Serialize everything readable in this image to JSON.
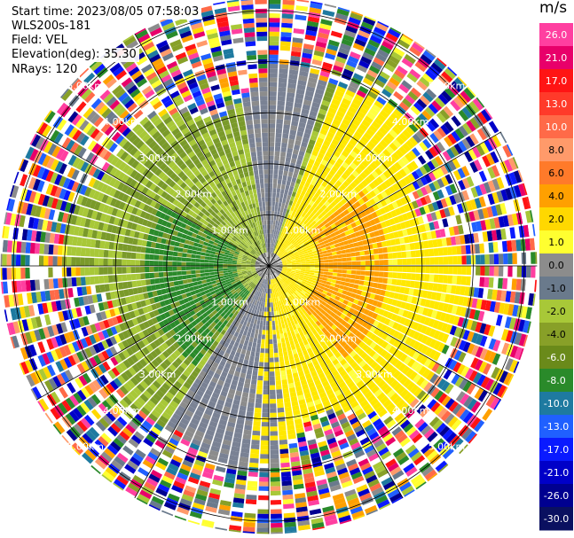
{
  "header": {
    "start_time": "Start time: 2023/08/05 07:58:03",
    "station": "WLS200s-181",
    "field": "Field: VEL",
    "elevation": "Elevation(deg): 35.30",
    "nrays": "NRays: 120"
  },
  "colorbar": {
    "unit": "m/s",
    "ticks": [
      "26.0",
      "21.0",
      "17.0",
      "13.0",
      "10.0",
      "8.0",
      "6.0",
      "4.0",
      "2.0",
      "1.0",
      "0.0",
      "-1.0",
      "-2.0",
      "-4.0",
      "-6.0",
      "-8.0",
      "-10.0",
      "-13.0",
      "-17.0",
      "-21.0",
      "-26.0",
      "-30.0"
    ],
    "colors": [
      "#ff3fa0",
      "#e8006a",
      "#ff1414",
      "#ff3a2a",
      "#ff6a48",
      "#ff9a6a",
      "#ff7a2a",
      "#ffa000",
      "#ffd800",
      "#ffff30",
      "#8c8c8c",
      "#6a7a8c",
      "#a8c838",
      "#88a028",
      "#6a8a1a",
      "#2a8a2a",
      "#1e7aa0",
      "#2060ff",
      "#0a1aff",
      "#0000c8",
      "#000090",
      "#0a1060"
    ]
  },
  "chart_data": {
    "type": "polar-ppi",
    "field": "VEL",
    "unit": "m/s",
    "nrays": 120,
    "range_rings_km": [
      1.0,
      2.0,
      3.0,
      4.0,
      5.0
    ],
    "ring_labels": {
      "1.0": "1.00km",
      "2.0": "2.00km",
      "3.0": "3.00km",
      "4.0": "4.00km",
      "5.0": "5.00km"
    },
    "ring_label_quadrants": [
      "NW",
      "NE",
      "SW",
      "SE"
    ],
    "spokes_deg": [
      0,
      30,
      60,
      90,
      120,
      150,
      180,
      210,
      240,
      270,
      300,
      330
    ],
    "noise_beyond_km": 3.6
  }
}
